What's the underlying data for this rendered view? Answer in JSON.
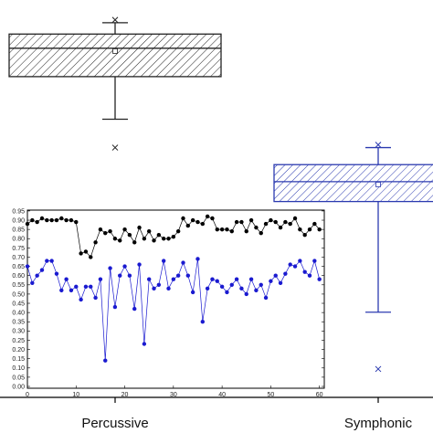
{
  "chart_data": [
    {
      "type": "box",
      "categories": [
        "Percussive",
        "Symphonic"
      ],
      "series": [
        {
          "category": "Percussive",
          "whisker_max": 0.96,
          "q3": 0.94,
          "median": 0.915,
          "mean": 0.91,
          "q1": 0.865,
          "whisker_min": 0.79,
          "outliers": [
            0.74
          ],
          "max_marker": 0.965,
          "color": "#222222",
          "hatch": true
        },
        {
          "category": "Symphonic",
          "whisker_max": 0.74,
          "q3": 0.71,
          "median": 0.68,
          "mean": 0.675,
          "q1": 0.645,
          "whisker_min": 0.45,
          "outliers": [
            0.35
          ],
          "max_marker": 0.745,
          "color": "#2b3ab0",
          "hatch": true
        }
      ],
      "ylim": [
        0.3,
        1.0
      ]
    },
    {
      "type": "line",
      "x": [
        0,
        1,
        2,
        3,
        4,
        5,
        6,
        7,
        8,
        9,
        10,
        11,
        12,
        13,
        14,
        15,
        16,
        17,
        18,
        19,
        20,
        21,
        22,
        23,
        24,
        25,
        26,
        27,
        28,
        29,
        30,
        31,
        32,
        33,
        34,
        35,
        36,
        37,
        38,
        39,
        40,
        41,
        42,
        43,
        44,
        45,
        46,
        47,
        48,
        49,
        50,
        51,
        52,
        53,
        54,
        55,
        56,
        57,
        58,
        59,
        60
      ],
      "series": [
        {
          "color": "#000000",
          "values": [
            0.88,
            0.9,
            0.89,
            0.91,
            0.9,
            0.9,
            0.9,
            0.91,
            0.9,
            0.9,
            0.89,
            0.72,
            0.73,
            0.7,
            0.78,
            0.85,
            0.83,
            0.84,
            0.8,
            0.79,
            0.85,
            0.82,
            0.78,
            0.86,
            0.8,
            0.84,
            0.79,
            0.82,
            0.8,
            0.8,
            0.81,
            0.84,
            0.91,
            0.87,
            0.9,
            0.89,
            0.88,
            0.92,
            0.91,
            0.85,
            0.85,
            0.85,
            0.84,
            0.89,
            0.89,
            0.84,
            0.9,
            0.86,
            0.83,
            0.88,
            0.9,
            0.89,
            0.86,
            0.89,
            0.88,
            0.91,
            0.85,
            0.82,
            0.85,
            0.88,
            0.85
          ]
        },
        {
          "color": "#1a1ad0",
          "values": [
            0.65,
            0.56,
            0.6,
            0.63,
            0.68,
            0.68,
            0.61,
            0.52,
            0.58,
            0.52,
            0.54,
            0.47,
            0.54,
            0.54,
            0.48,
            0.58,
            0.14,
            0.64,
            0.43,
            0.6,
            0.65,
            0.6,
            0.42,
            0.66,
            0.23,
            0.58,
            0.53,
            0.55,
            0.68,
            0.53,
            0.58,
            0.6,
            0.67,
            0.6,
            0.51,
            0.69,
            0.35,
            0.53,
            0.58,
            0.57,
            0.54,
            0.51,
            0.55,
            0.58,
            0.53,
            0.5,
            0.58,
            0.52,
            0.55,
            0.48,
            0.57,
            0.6,
            0.56,
            0.61,
            0.66,
            0.65,
            0.68,
            0.62,
            0.6,
            0.68,
            0.58
          ]
        }
      ],
      "xlim": [
        0,
        61
      ],
      "ylim": [
        0,
        0.95
      ],
      "xticks": [
        0,
        10,
        20,
        30,
        40,
        50,
        60
      ],
      "yticks": [
        "0.00",
        "0.05",
        "0.10",
        "0.15",
        "0.20",
        "0.25",
        "0.30",
        "0.35",
        "0.40",
        "0.45",
        "0.50",
        "0.55",
        "0.60",
        "0.65",
        "0.70",
        "0.75",
        "0.80",
        "0.85",
        "0.90",
        "0.95"
      ]
    }
  ]
}
